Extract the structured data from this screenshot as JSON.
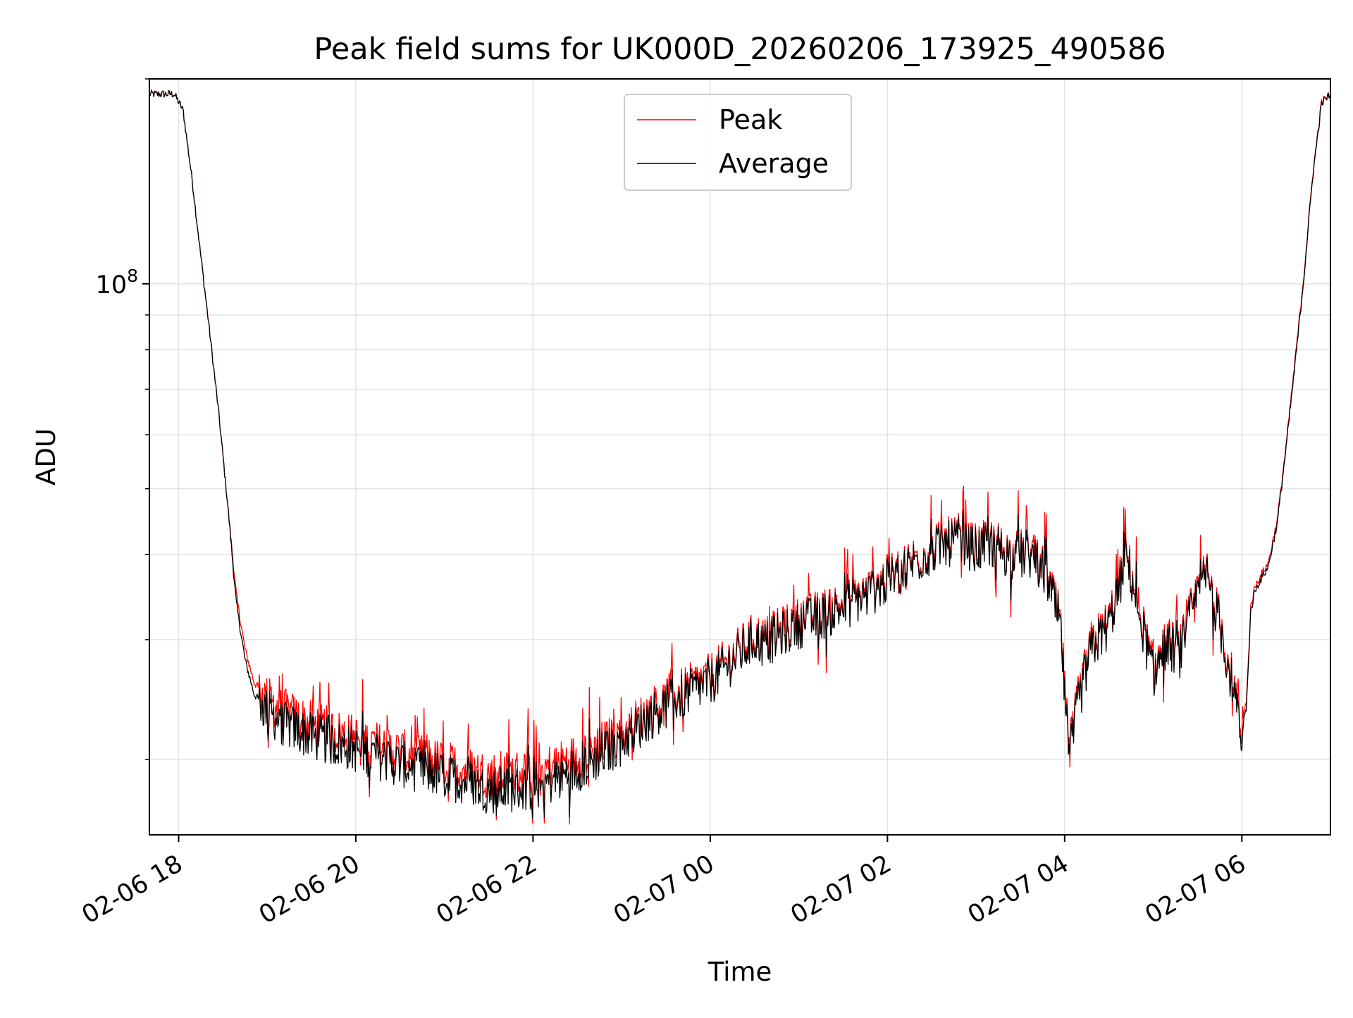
{
  "chart_data": {
    "type": "line",
    "title": "Peak field sums for UK000D_20260206_173925_490586",
    "xlabel": "Time",
    "ylabel": "ADU",
    "yscale": "log",
    "ylim": [
      15500000,
      200000000
    ],
    "xlim_hours": [
      -0.33,
      13.0
    ],
    "x_unit": "hours since 02-06 18:00",
    "grid": true,
    "legend": {
      "position": "top-center",
      "entries": [
        "Peak",
        "Average"
      ]
    },
    "x_ticks": [
      {
        "value": 0,
        "label": "02-06 18"
      },
      {
        "value": 2,
        "label": "02-06 20"
      },
      {
        "value": 4,
        "label": "02-06 22"
      },
      {
        "value": 6,
        "label": "02-07 00"
      },
      {
        "value": 8,
        "label": "02-07 02"
      },
      {
        "value": 10,
        "label": "02-07 04"
      },
      {
        "value": 12,
        "label": "02-07 06"
      }
    ],
    "y_ticks": [
      {
        "value": 100000000,
        "base": "10",
        "exp": "8"
      }
    ],
    "series": [
      {
        "name": "Peak",
        "color": "#ff0000",
        "x": [
          -0.33,
          -0.05,
          0.05,
          0.15,
          0.25,
          0.35,
          0.45,
          0.55,
          0.65,
          0.75,
          0.85,
          1.0,
          1.2,
          1.5,
          2.0,
          2.5,
          3.0,
          3.3,
          3.5,
          3.8,
          4.0,
          4.3,
          4.6,
          5.0,
          5.3,
          5.6,
          5.75,
          6.0,
          6.2,
          6.5,
          6.6,
          6.7,
          7.0,
          7.4,
          7.8,
          8.0,
          8.3,
          8.6,
          8.8,
          9.0,
          9.2,
          9.4,
          9.6,
          9.8,
          9.95,
          10.05,
          10.15,
          10.3,
          10.5,
          10.7,
          10.85,
          11.0,
          11.15,
          11.3,
          11.45,
          11.6,
          11.75,
          11.9,
          12.0,
          12.05,
          12.1,
          12.15,
          12.3,
          12.4,
          12.5,
          12.6,
          12.7,
          12.8,
          12.9,
          13.0
        ],
        "y": [
          190000000,
          190000000,
          180000000,
          143000000,
          110000000,
          85000000,
          65000000,
          48000000,
          35000000,
          29000000,
          26000000,
          24500000,
          23500000,
          22500000,
          21500000,
          20500000,
          19700000,
          19300000,
          19000000,
          19100000,
          19200000,
          19700000,
          20500000,
          21800000,
          23500000,
          25000000,
          25500000,
          26500000,
          28000000,
          30500000,
          30000000,
          30500000,
          32000000,
          33500000,
          35500000,
          37000000,
          39500000,
          41500000,
          42500000,
          41000000,
          42000000,
          40000000,
          40500000,
          37500000,
          32000000,
          20500000,
          24500000,
          29500000,
          32000000,
          40000000,
          33000000,
          27000000,
          30000000,
          29000000,
          34000000,
          38000000,
          32000000,
          26000000,
          21500000,
          24000000,
          33500000,
          36000000,
          39000000,
          45000000,
          58000000,
          77000000,
          103000000,
          145000000,
          185000000,
          190000000
        ]
      },
      {
        "name": "Average",
        "color": "#000000",
        "x": [
          -0.33,
          -0.05,
          0.05,
          0.15,
          0.25,
          0.35,
          0.45,
          0.55,
          0.65,
          0.75,
          0.85,
          1.0,
          1.2,
          1.5,
          2.0,
          2.5,
          3.0,
          3.3,
          3.5,
          3.8,
          4.0,
          4.3,
          4.6,
          5.0,
          5.3,
          5.6,
          5.75,
          6.0,
          6.2,
          6.5,
          6.6,
          6.7,
          7.0,
          7.4,
          7.8,
          8.0,
          8.3,
          8.6,
          8.8,
          9.0,
          9.2,
          9.4,
          9.6,
          9.8,
          9.95,
          10.05,
          10.15,
          10.3,
          10.5,
          10.7,
          10.85,
          11.0,
          11.15,
          11.3,
          11.45,
          11.6,
          11.75,
          11.9,
          12.0,
          12.05,
          12.1,
          12.15,
          12.3,
          12.4,
          12.5,
          12.6,
          12.7,
          12.8,
          12.9,
          13.0
        ],
        "y": [
          190000000,
          190000000,
          180000000,
          143000000,
          110000000,
          85000000,
          65000000,
          48000000,
          34000000,
          28000000,
          25000000,
          23500000,
          22500000,
          21600000,
          20700000,
          19700000,
          18900000,
          18500000,
          18000000,
          18100000,
          18200000,
          18800000,
          19700000,
          21200000,
          23000000,
          24500000,
          25000000,
          26000000,
          27500000,
          30000000,
          29500000,
          30000000,
          31500000,
          33000000,
          35000000,
          36500000,
          39000000,
          41000000,
          42000000,
          40500000,
          41500000,
          39500000,
          40000000,
          37000000,
          31500000,
          20000000,
          24000000,
          29000000,
          31500000,
          39500000,
          32500000,
          26500000,
          29500000,
          28500000,
          33500000,
          37500000,
          31500000,
          25500000,
          21000000,
          23500000,
          33000000,
          35500000,
          38500000,
          44500000,
          57500000,
          76000000,
          102000000,
          144000000,
          184000000,
          190000000
        ]
      }
    ]
  }
}
